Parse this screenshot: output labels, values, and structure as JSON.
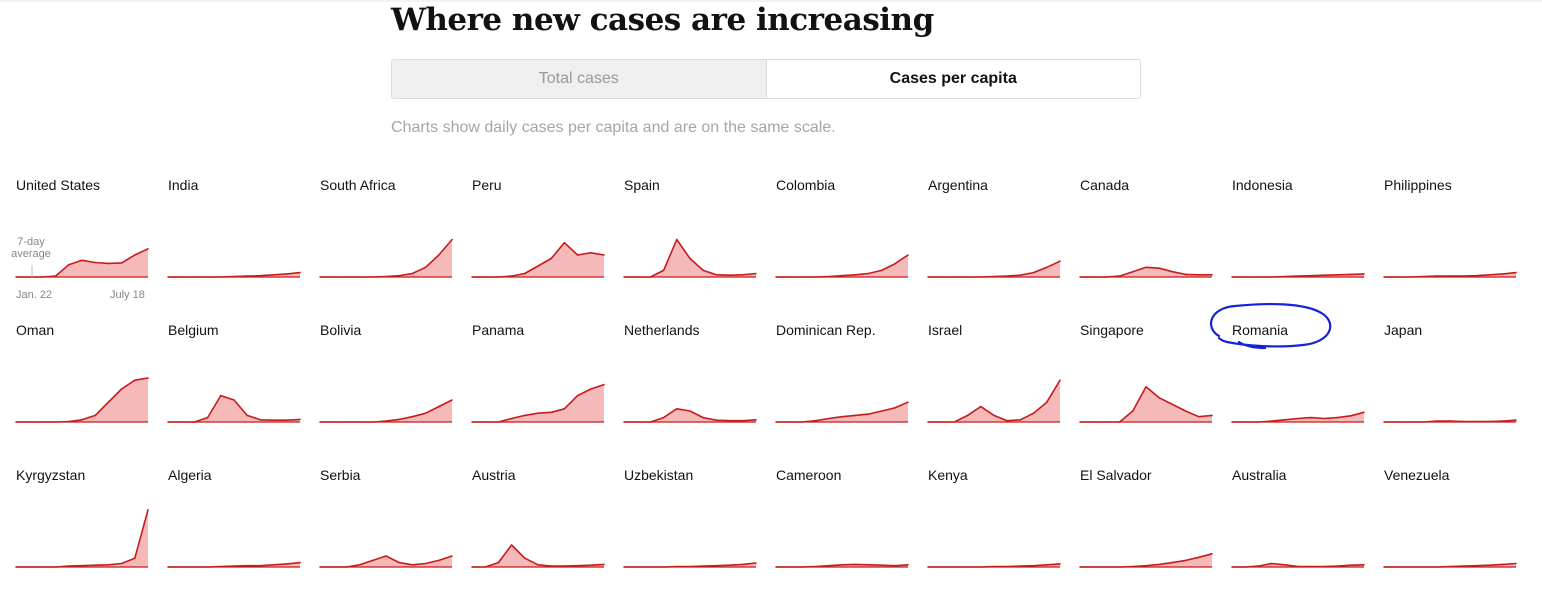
{
  "header": {
    "title": "Where new cases are increasing",
    "toggle": {
      "options": [
        "Total cases",
        "Cases per capita"
      ],
      "selected": "Cases per capita"
    },
    "note": "Charts show daily cases per capita and are on the same scale."
  },
  "annotations": {
    "average_label": "7-day average",
    "average_line1": "7-day",
    "average_line2": "average",
    "x_start": "Jan. 22",
    "x_end": "July 18"
  },
  "colors": {
    "line": "#c81b1b",
    "fill": "#f4b9b8",
    "spike": "#cfcfcf",
    "highlight": "#1522d8"
  },
  "chart_data": {
    "type": "area",
    "title": "Where new cases are increasing",
    "x_range": [
      "Jan. 22",
      "July 18"
    ],
    "ylim": [
      0,
      1
    ],
    "highlighted": "Romania",
    "x": [
      0,
      0.1,
      0.2,
      0.3,
      0.4,
      0.5,
      0.6,
      0.7,
      0.8,
      0.9,
      1.0
    ],
    "series": [
      {
        "name": "United States",
        "values": [
          0,
          0,
          0,
          0.02,
          0.28,
          0.38,
          0.33,
          0.31,
          0.32,
          0.5,
          0.64
        ]
      },
      {
        "name": "India",
        "values": [
          0,
          0,
          0,
          0,
          0,
          0.01,
          0.02,
          0.03,
          0.05,
          0.07,
          0.1
        ]
      },
      {
        "name": "South Africa",
        "values": [
          0,
          0,
          0,
          0,
          0,
          0.01,
          0.03,
          0.08,
          0.22,
          0.5,
          0.85
        ]
      },
      {
        "name": "Peru",
        "values": [
          0,
          0,
          0,
          0.02,
          0.08,
          0.25,
          0.42,
          0.78,
          0.5,
          0.55,
          0.5
        ]
      },
      {
        "name": "Spain",
        "values": [
          0,
          0,
          0,
          0.15,
          0.85,
          0.42,
          0.15,
          0.05,
          0.04,
          0.05,
          0.08
        ]
      },
      {
        "name": "Colombia",
        "values": [
          0,
          0,
          0,
          0,
          0.01,
          0.03,
          0.05,
          0.08,
          0.15,
          0.3,
          0.5
        ]
      },
      {
        "name": "Argentina",
        "values": [
          0,
          0,
          0,
          0,
          0,
          0.01,
          0.02,
          0.04,
          0.1,
          0.22,
          0.36
        ]
      },
      {
        "name": "Canada",
        "values": [
          0,
          0,
          0,
          0.02,
          0.12,
          0.22,
          0.2,
          0.12,
          0.06,
          0.05,
          0.05
        ]
      },
      {
        "name": "Indonesia",
        "values": [
          0,
          0,
          0,
          0,
          0.01,
          0.02,
          0.03,
          0.04,
          0.05,
          0.06,
          0.07
        ]
      },
      {
        "name": "Philippines",
        "values": [
          0,
          0,
          0,
          0.01,
          0.02,
          0.02,
          0.02,
          0.03,
          0.05,
          0.07,
          0.1
        ]
      },
      {
        "name": "Oman",
        "values": [
          0,
          0,
          0,
          0,
          0.01,
          0.05,
          0.15,
          0.45,
          0.75,
          0.95,
          1.0
        ]
      },
      {
        "name": "Belgium",
        "values": [
          0,
          0,
          0,
          0.1,
          0.6,
          0.5,
          0.15,
          0.05,
          0.04,
          0.04,
          0.06
        ]
      },
      {
        "name": "Bolivia",
        "values": [
          0,
          0,
          0,
          0,
          0,
          0.02,
          0.06,
          0.12,
          0.2,
          0.35,
          0.5
        ]
      },
      {
        "name": "Panama",
        "values": [
          0,
          0,
          0,
          0.08,
          0.15,
          0.2,
          0.22,
          0.3,
          0.6,
          0.75,
          0.85
        ]
      },
      {
        "name": "Netherlands",
        "values": [
          0,
          0,
          0,
          0.1,
          0.3,
          0.25,
          0.1,
          0.04,
          0.03,
          0.03,
          0.05
        ]
      },
      {
        "name": "Dominican Rep.",
        "values": [
          0,
          0,
          0,
          0.03,
          0.08,
          0.12,
          0.15,
          0.18,
          0.25,
          0.32,
          0.45
        ]
      },
      {
        "name": "Israel",
        "values": [
          0,
          0,
          0,
          0.15,
          0.35,
          0.15,
          0.03,
          0.05,
          0.2,
          0.45,
          0.95
        ]
      },
      {
        "name": "Singapore",
        "values": [
          0,
          0,
          0,
          0,
          0.25,
          0.8,
          0.55,
          0.4,
          0.25,
          0.12,
          0.15
        ]
      },
      {
        "name": "Romania",
        "values": [
          0,
          0,
          0,
          0.02,
          0.05,
          0.08,
          0.1,
          0.08,
          0.1,
          0.14,
          0.22
        ]
      },
      {
        "name": "Japan",
        "values": [
          0,
          0,
          0,
          0,
          0.02,
          0.02,
          0.01,
          0.01,
          0.01,
          0.02,
          0.04
        ]
      },
      {
        "name": "Kyrgyzstan",
        "values": [
          0,
          0,
          0,
          0,
          0.02,
          0.03,
          0.04,
          0.05,
          0.08,
          0.2,
          1.3
        ]
      },
      {
        "name": "Algeria",
        "values": [
          0,
          0,
          0,
          0,
          0.01,
          0.02,
          0.03,
          0.03,
          0.05,
          0.07,
          0.1
        ]
      },
      {
        "name": "Serbia",
        "values": [
          0,
          0,
          0,
          0.05,
          0.15,
          0.25,
          0.1,
          0.05,
          0.08,
          0.15,
          0.25
        ]
      },
      {
        "name": "Austria",
        "values": [
          0,
          0,
          0.1,
          0.5,
          0.2,
          0.05,
          0.02,
          0.02,
          0.03,
          0.04,
          0.06
        ]
      },
      {
        "name": "Uzbekistan",
        "values": [
          0,
          0,
          0,
          0,
          0.01,
          0.01,
          0.02,
          0.03,
          0.04,
          0.06,
          0.09
        ]
      },
      {
        "name": "Cameroon",
        "values": [
          0,
          0,
          0,
          0.01,
          0.03,
          0.05,
          0.06,
          0.05,
          0.04,
          0.03,
          0.05
        ]
      },
      {
        "name": "Kenya",
        "values": [
          0,
          0,
          0,
          0,
          0,
          0.01,
          0.01,
          0.02,
          0.03,
          0.05,
          0.07
        ]
      },
      {
        "name": "El Salvador",
        "values": [
          0,
          0,
          0,
          0,
          0.01,
          0.03,
          0.06,
          0.1,
          0.15,
          0.22,
          0.3
        ]
      },
      {
        "name": "Australia",
        "values": [
          0,
          0,
          0.02,
          0.08,
          0.05,
          0.01,
          0.01,
          0.01,
          0.02,
          0.04,
          0.05
        ]
      },
      {
        "name": "Venezuela",
        "values": [
          0,
          0,
          0,
          0,
          0,
          0.01,
          0.02,
          0.03,
          0.04,
          0.06,
          0.08
        ]
      }
    ]
  }
}
